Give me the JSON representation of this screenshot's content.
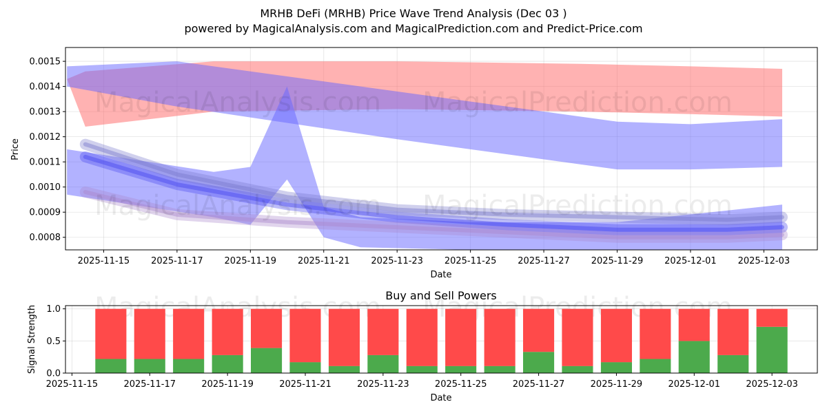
{
  "header": {
    "title": "MRHB DeFi (MRHB) Price Wave Trend Analysis (Dec 03 )",
    "subtitle": "powered by MagicalAnalysis.com and MagicalPrediction.com and Predict-Price.com"
  },
  "watermarks": [
    "MagicalAnalysis.com",
    "MagicalPrediction.com"
  ],
  "chart_data": [
    {
      "type": "area",
      "title": "",
      "xlabel": "Date",
      "ylabel": "Price",
      "xlim": [
        "2025-11-13T23:00",
        "2025-12-04T11:00"
      ],
      "ylim": [
        0.00075,
        0.001555
      ],
      "grid": true,
      "x_ticks": [
        "2025-11-15",
        "2025-11-17",
        "2025-11-19",
        "2025-11-21",
        "2025-11-23",
        "2025-11-25",
        "2025-11-27",
        "2025-11-29",
        "2025-12-01",
        "2025-12-03"
      ],
      "y_ticks": [
        0.0008,
        0.0009,
        0.001,
        0.0011,
        0.0012,
        0.0013,
        0.0014,
        0.0015
      ],
      "y_tick_labels": [
        "0.0008",
        "0.0009",
        "0.0010",
        "0.0011",
        "0.0012",
        "0.0013",
        "0.0014",
        "0.0015"
      ],
      "bands": [
        {
          "name": "long-term red wave",
          "color": "#ff6666",
          "opacity": 0.5,
          "x": [
            "2025-11-14",
            "2025-11-14T12:00",
            "2025-11-18",
            "2025-11-23",
            "2025-11-28",
            "2025-12-01",
            "2025-12-03T12:00"
          ],
          "upper": [
            0.00143,
            0.00146,
            0.0015,
            0.0015,
            0.00149,
            0.00148,
            0.00147
          ],
          "lower": [
            0.00143,
            0.00124,
            0.0013,
            0.00131,
            0.0013,
            0.00129,
            0.00128
          ]
        },
        {
          "name": "long-term blue wave",
          "color": "#6666ff",
          "opacity": 0.5,
          "x": [
            "2025-11-14",
            "2025-11-17",
            "2025-11-23",
            "2025-11-29",
            "2025-12-01",
            "2025-12-03T12:00"
          ],
          "upper": [
            0.00148,
            0.0015,
            0.00138,
            0.00126,
            0.00125,
            0.00127
          ],
          "lower": [
            0.0014,
            0.00132,
            0.00119,
            0.00107,
            0.00107,
            0.00108
          ]
        },
        {
          "name": "mid-term blue wave (swing)",
          "color": "#6666ff",
          "opacity": 0.5,
          "x": [
            "2025-11-14",
            "2025-11-18",
            "2025-11-19",
            "2025-11-20",
            "2025-11-21",
            "2025-11-22",
            "2025-11-25",
            "2025-11-29",
            "2025-12-03T12:00"
          ],
          "upper": [
            0.00115,
            0.00106,
            0.00108,
            0.0014,
            0.00092,
            0.00088,
            0.00086,
            0.00086,
            0.00093
          ],
          "lower": [
            0.00097,
            0.00088,
            0.00085,
            0.00103,
            0.0008,
            0.00076,
            0.00075,
            0.00075,
            0.00075
          ]
        }
      ],
      "wave_lines": [
        {
          "name": "dense wave cluster",
          "color": "#4444ee",
          "x": [
            "2025-11-14T12:00",
            "2025-11-17",
            "2025-11-20",
            "2025-11-23",
            "2025-11-26",
            "2025-11-29",
            "2025-12-02",
            "2025-12-03T12:00"
          ],
          "y": [
            0.00112,
            0.00101,
            0.00093,
            0.00088,
            0.00085,
            0.00083,
            0.00083,
            0.00084
          ]
        },
        {
          "name": "upper wave",
          "color": "#7777cc",
          "x": [
            "2025-11-14T12:00",
            "2025-11-17",
            "2025-11-20",
            "2025-11-23",
            "2025-11-26",
            "2025-11-29",
            "2025-12-02",
            "2025-12-03T12:00"
          ],
          "y": [
            0.00117,
            0.00105,
            0.00096,
            0.00091,
            0.00089,
            0.00088,
            0.00087,
            0.00088
          ]
        },
        {
          "name": "lower wave",
          "color": "#aa88cc",
          "x": [
            "2025-11-14T12:00",
            "2025-11-17",
            "2025-11-20",
            "2025-11-23",
            "2025-11-26",
            "2025-11-29",
            "2025-12-02",
            "2025-12-03T12:00"
          ],
          "y": [
            0.00098,
            0.00089,
            0.00086,
            0.00084,
            0.00082,
            0.0008,
            0.0008,
            0.00081
          ]
        }
      ]
    },
    {
      "type": "bar",
      "title": "Buy and Sell Powers",
      "xlabel": "Date",
      "ylabel": "Signal Strength",
      "xlim": [
        "2025-11-14T20:00",
        "2025-12-04T04:00"
      ],
      "ylim": [
        0,
        1.05
      ],
      "grid": true,
      "x_ticks": [
        "2025-11-15",
        "2025-11-17",
        "2025-11-19",
        "2025-11-21",
        "2025-11-23",
        "2025-11-25",
        "2025-11-27",
        "2025-11-29",
        "2025-12-01",
        "2025-12-03"
      ],
      "y_ticks": [
        0.0,
        0.5,
        1.0
      ],
      "y_tick_labels": [
        "0.0",
        "0.5",
        "1.0"
      ],
      "categories": [
        "2025-11-16",
        "2025-11-17",
        "2025-11-18",
        "2025-11-19",
        "2025-11-20",
        "2025-11-21",
        "2025-11-22",
        "2025-11-23",
        "2025-11-24",
        "2025-11-25",
        "2025-11-26",
        "2025-11-27",
        "2025-11-28",
        "2025-11-29",
        "2025-11-30",
        "2025-12-01",
        "2025-12-02",
        "2025-12-03"
      ],
      "series": [
        {
          "name": "Buy",
          "color": "#4caa4c",
          "values": [
            0.22,
            0.22,
            0.22,
            0.28,
            0.39,
            0.17,
            0.11,
            0.28,
            0.11,
            0.11,
            0.11,
            0.33,
            0.11,
            0.17,
            0.22,
            0.5,
            0.28,
            0.72
          ]
        },
        {
          "name": "Sell",
          "color": "#ff4a4a",
          "values": [
            0.78,
            0.78,
            0.78,
            0.72,
            0.61,
            0.83,
            0.89,
            0.72,
            0.89,
            0.89,
            0.89,
            0.67,
            0.89,
            0.83,
            0.78,
            0.5,
            0.72,
            0.28
          ]
        }
      ]
    }
  ]
}
